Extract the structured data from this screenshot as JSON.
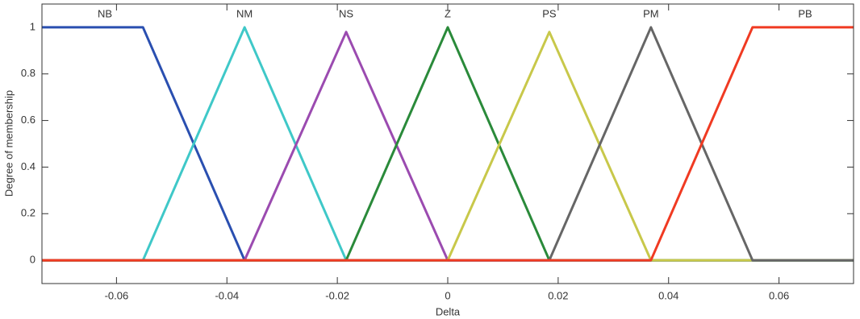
{
  "chart_data": {
    "type": "line",
    "x_label": "Delta",
    "y_label": "Degree of membership",
    "xlim": [
      -0.0735,
      0.0735
    ],
    "ylim": [
      -0.1,
      1.1
    ],
    "xticks": [
      -0.06,
      -0.04,
      -0.02,
      0,
      0.02,
      0.04,
      0.06
    ],
    "yticks": [
      0,
      0.2,
      0.4,
      0.6,
      0.8,
      1
    ],
    "grid": false,
    "series": [
      {
        "name": "NB",
        "color": "#2a4fb0",
        "x": [
          -0.0735,
          -0.0552,
          -0.0368,
          0.0735
        ],
        "values": [
          1,
          1,
          0,
          0
        ]
      },
      {
        "name": "NM",
        "color": "#3fc8c8",
        "x": [
          -0.0735,
          -0.0552,
          -0.0368,
          -0.0184,
          0.0735
        ],
        "values": [
          0,
          0,
          1,
          0,
          0
        ]
      },
      {
        "name": "NS",
        "color": "#9b4bb0",
        "x": [
          -0.0735,
          -0.0368,
          -0.0184,
          0,
          0.0735
        ],
        "values": [
          0,
          0,
          0.98,
          0,
          0
        ]
      },
      {
        "name": "Z",
        "color": "#2a8a3a",
        "x": [
          -0.0735,
          -0.0184,
          0,
          0.0184,
          0.0735
        ],
        "values": [
          0,
          0,
          1,
          0,
          0
        ]
      },
      {
        "name": "PS",
        "color": "#c8c84a",
        "x": [
          -0.0735,
          0,
          0.0184,
          0.0368,
          0.0735
        ],
        "values": [
          0,
          0,
          0.98,
          0,
          0
        ]
      },
      {
        "name": "PM",
        "color": "#666666",
        "x": [
          -0.0735,
          0.0184,
          0.0368,
          0.0552,
          0.0735
        ],
        "values": [
          0,
          0,
          1,
          0,
          0
        ]
      },
      {
        "name": "PB",
        "color": "#f03a22",
        "x": [
          -0.0735,
          0.0368,
          0.0552,
          0.0735
        ],
        "values": [
          0,
          0,
          1,
          1
        ]
      }
    ]
  }
}
